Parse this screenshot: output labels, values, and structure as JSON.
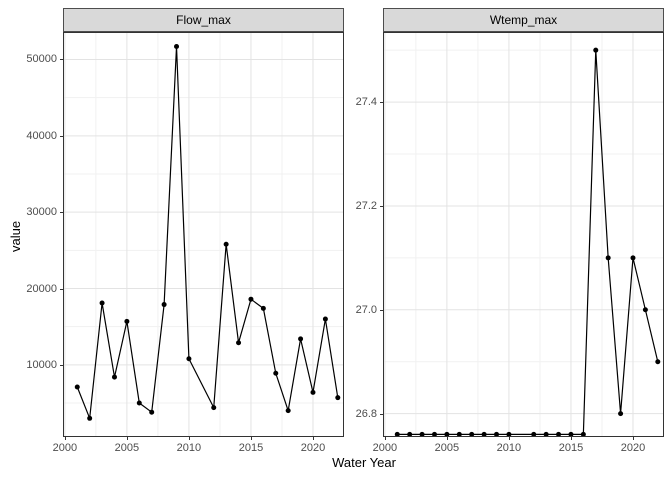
{
  "figure": {
    "x_label": "Water Year",
    "y_label": "value",
    "colors": {
      "background": "#FFFFFF",
      "panel_background": "#FFFFFF",
      "panel_border": "#333333",
      "grid_major": "#E3E3E3",
      "grid_minor": "#F1F1F1",
      "strip_background": "#D9D9D9",
      "strip_border": "#4D4D4D",
      "axis_text": "#4D4D4D",
      "title_text": "#000000",
      "line": "#000000",
      "point": "#000000"
    }
  },
  "chart_data": [
    {
      "type": "line",
      "title": "Flow_max",
      "x": [
        2001,
        2002,
        2003,
        2004,
        2005,
        2006,
        2007,
        2008,
        2009,
        2010,
        2012,
        2013,
        2014,
        2015,
        2016,
        2017,
        2018,
        2019,
        2020,
        2021,
        2022
      ],
      "values": [
        7100,
        3000,
        18100,
        8400,
        15700,
        5000,
        3800,
        17900,
        51700,
        10800,
        4400,
        25800,
        12900,
        18600,
        17400,
        8900,
        4000,
        13400,
        6400,
        16000,
        5700
      ],
      "missing_years": [
        2011
      ],
      "x_ticks": [
        2000,
        2005,
        2010,
        2015,
        2020
      ],
      "x_tick_labels": [
        "2000",
        "2005",
        "2010",
        "2015",
        "2020"
      ],
      "x_minor": [
        2002.5,
        2007.5,
        2012.5,
        2017.5
      ],
      "y_ticks": [
        10000,
        20000,
        30000,
        40000,
        50000
      ],
      "y_tick_labels": [
        "10000",
        "20000",
        "30000",
        "40000",
        "50000"
      ],
      "y_minor": [
        5000,
        15000,
        25000,
        35000,
        45000
      ],
      "xlim": [
        1999.85,
        2022.5
      ],
      "ylim": [
        550,
        53600
      ],
      "grid": true,
      "legend": "none"
    },
    {
      "type": "line",
      "title": "Wtemp_max",
      "x": [
        2001,
        2002,
        2003,
        2004,
        2005,
        2006,
        2007,
        2008,
        2009,
        2010,
        2012,
        2013,
        2014,
        2015,
        2016,
        2017,
        2018,
        2019,
        2020,
        2021,
        2022
      ],
      "values": [
        26.76,
        26.76,
        26.76,
        26.76,
        26.76,
        26.76,
        26.76,
        26.76,
        26.76,
        26.76,
        26.76,
        26.76,
        26.76,
        26.76,
        26.76,
        27.5,
        27.1,
        26.8,
        27.1,
        27.0,
        26.9
      ],
      "missing_years": [
        2011
      ],
      "x_ticks": [
        2000,
        2005,
        2010,
        2015,
        2020
      ],
      "x_tick_labels": [
        "2000",
        "2005",
        "2010",
        "2015",
        "2020"
      ],
      "x_minor": [
        2002.5,
        2007.5,
        2012.5,
        2017.5
      ],
      "y_ticks": [
        26.8,
        27.0,
        27.2,
        27.4
      ],
      "y_tick_labels": [
        "26.8",
        "27.0",
        "27.2",
        "27.4"
      ],
      "y_minor": [
        26.9,
        27.1,
        27.3,
        27.5
      ],
      "xlim": [
        1999.85,
        2022.5
      ],
      "ylim": [
        26.755,
        27.535
      ],
      "grid": true,
      "legend": "none"
    }
  ]
}
